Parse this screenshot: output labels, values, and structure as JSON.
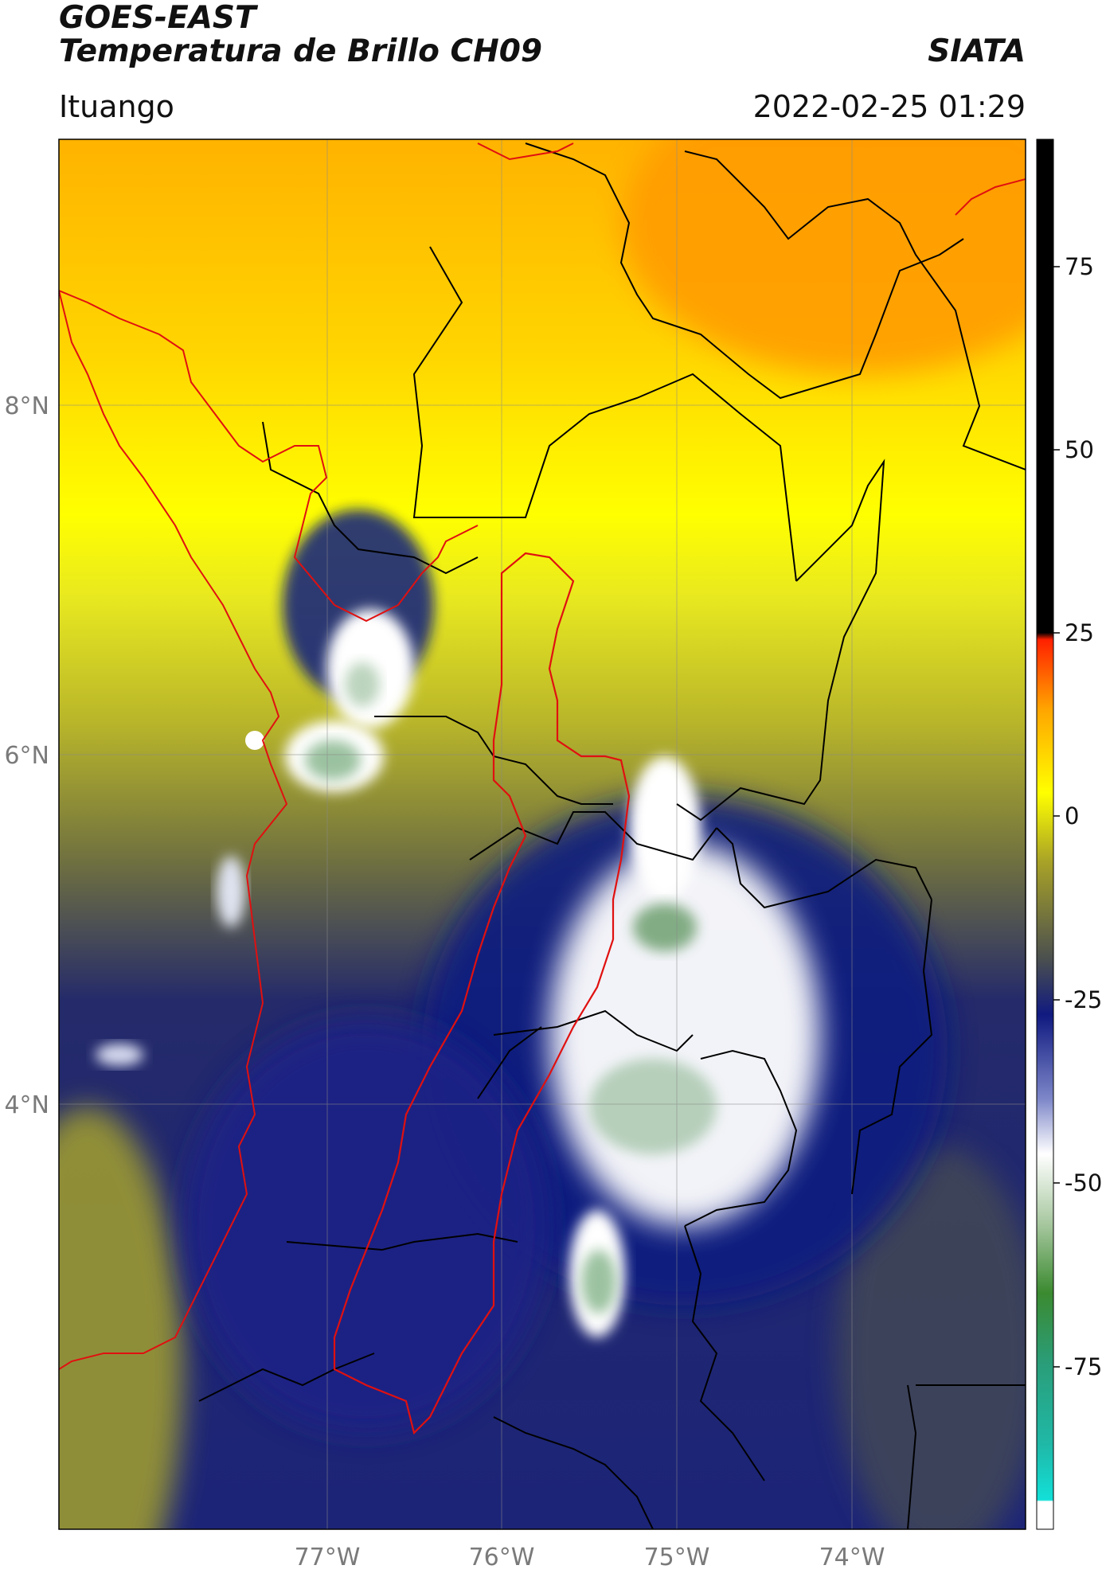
{
  "header": {
    "satellite": "GOES-EAST",
    "product": "Temperatura de Brillo CH09",
    "organization": "SIATA",
    "region": "Ituango",
    "datetime": "2022-02-25 01:29"
  },
  "map": {
    "lat_ticks": [
      "8°N",
      "6°N",
      "4°N"
    ],
    "lon_ticks": [
      "77°W",
      "76°W",
      "75°W",
      "74°W"
    ],
    "gridlines": true,
    "boundary_colors": {
      "national": "#e01010",
      "highlighted_region": "#e01010",
      "departments": "#000000"
    }
  },
  "colorbar": {
    "ticks": [
      "75",
      "50",
      "25",
      "0",
      "-25",
      "-50",
      "-75"
    ],
    "position": "right",
    "color_stops": [
      "#ffffff",
      "#12e0d8",
      "#2a9d78",
      "#3b8a30",
      "#e8f0e0",
      "#ffffff",
      "#7c86c8",
      "#101a80",
      "#4a4f4f",
      "#a8a227",
      "#ffff00",
      "#ffa500",
      "#ff2000",
      "#000000"
    ]
  }
}
